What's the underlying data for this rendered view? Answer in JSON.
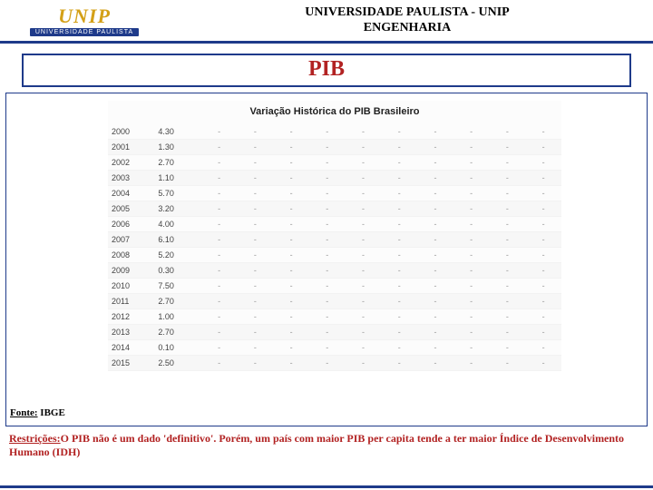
{
  "header": {
    "logo_main": "UNIP",
    "logo_sub": "UNIVERSIDADE PAULISTA",
    "line1": "UNIVERSIDADE PAULISTA - UNIP",
    "line2": "ENGENHARIA"
  },
  "title": "PIB",
  "table": {
    "title": "Variação Histórica do PIB Brasileiro",
    "rows": [
      {
        "year": "2000",
        "value": "4.30"
      },
      {
        "year": "2001",
        "value": "1.30"
      },
      {
        "year": "2002",
        "value": "2.70"
      },
      {
        "year": "2003",
        "value": "1.10"
      },
      {
        "year": "2004",
        "value": "5.70"
      },
      {
        "year": "2005",
        "value": "3.20"
      },
      {
        "year": "2006",
        "value": "4.00"
      },
      {
        "year": "2007",
        "value": "6.10"
      },
      {
        "year": "2008",
        "value": "5.20"
      },
      {
        "year": "2009",
        "value": "0.30"
      },
      {
        "year": "2010",
        "value": "7.50"
      },
      {
        "year": "2011",
        "value": "2.70"
      },
      {
        "year": "2012",
        "value": "1.00"
      },
      {
        "year": "2013",
        "value": "2.70"
      },
      {
        "year": "2014",
        "value": "0.10"
      },
      {
        "year": "2015",
        "value": "2.50"
      }
    ],
    "dash_count": 10
  },
  "fonte": {
    "label": "Fonte:",
    "value": " IBGE"
  },
  "footer": {
    "label": "Restrições:",
    "text": "O PIB não é um dado 'definitivo'. Porém, um país com maior PIB per capita tende a ter maior Índice de Desenvolvimento Humano (IDH)"
  },
  "colors": {
    "accent": "#1e3a8a",
    "red": "#b22222",
    "gold": "#d4a017"
  }
}
